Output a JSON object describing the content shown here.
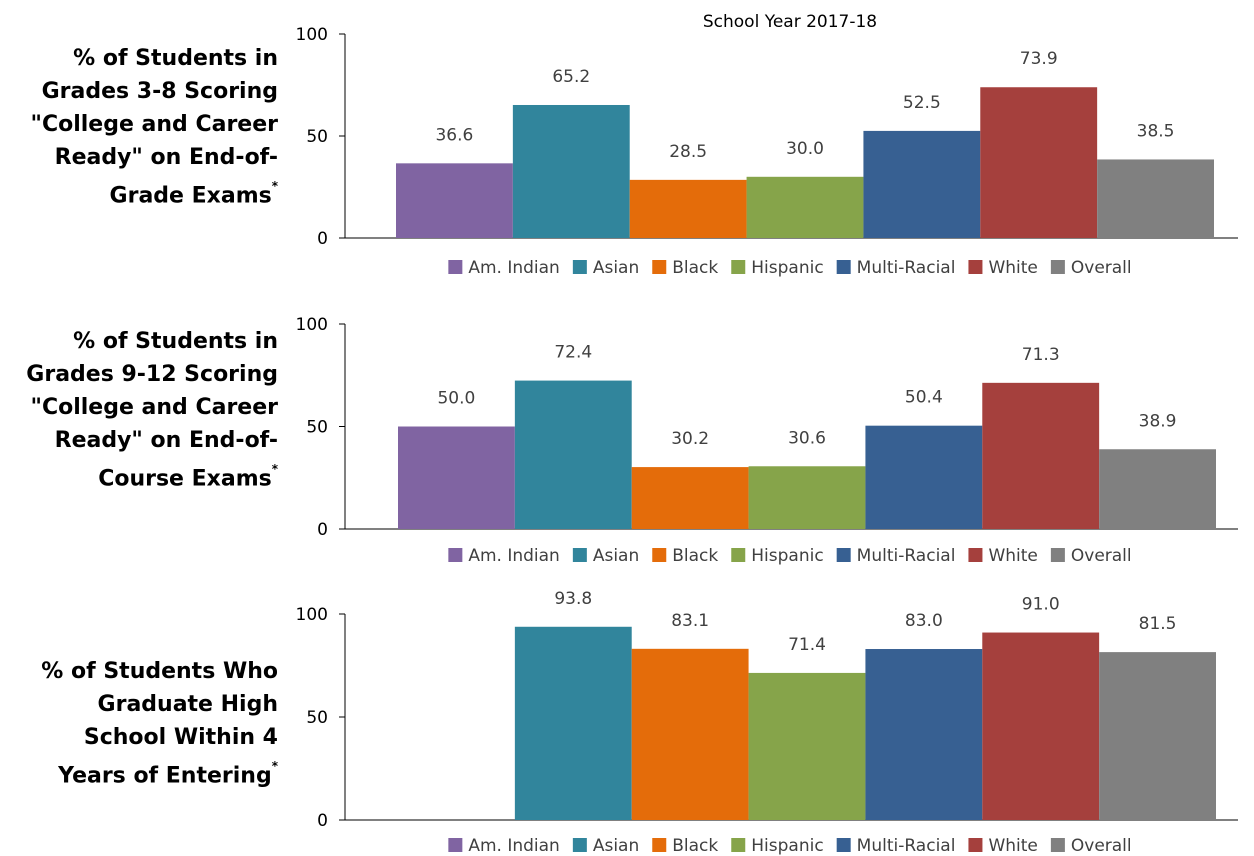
{
  "colors": {
    "Am. Indian": "#8064a2",
    "Asian": "#31859c",
    "Black": "#e46c0a",
    "Hispanic": "#86a44a",
    "Multi-Racial": "#376092",
    "White": "#a5403d",
    "Overall": "#808080"
  },
  "chart_data": [
    {
      "type": "bar",
      "title": "% of Students in Grades 3-8 Scoring \"College and Career Ready\" on End-of-Grade Exams",
      "title_marker": "*",
      "subtitle": "School Year 2017-18",
      "categories": [
        "Am. Indian",
        "Asian",
        "Black",
        "Hispanic",
        "Multi-Racial",
        "White",
        "Overall"
      ],
      "values": [
        36.6,
        65.2,
        28.5,
        30.0,
        52.5,
        73.9,
        38.5
      ],
      "value_labels": [
        "36.6",
        "65.2",
        "28.5",
        "30.0",
        "52.5",
        "73.9",
        "38.5"
      ],
      "ylim": [
        0,
        100
      ],
      "yticks": [
        "0",
        "50",
        "100"
      ],
      "legend": [
        "Am. Indian",
        "Asian",
        "Black",
        "Hispanic",
        "Multi-Racial",
        "White",
        "Overall"
      ],
      "legend_position": "bottom",
      "grid": false
    },
    {
      "type": "bar",
      "title": "% of Students in Grades 9-12 Scoring \"College and Career Ready\" on End-of-Course Exams",
      "title_marker": "*",
      "categories": [
        "Am. Indian",
        "Asian",
        "Black",
        "Hispanic",
        "Multi-Racial",
        "White",
        "Overall"
      ],
      "values": [
        50.0,
        72.4,
        30.2,
        30.6,
        50.4,
        71.3,
        38.9
      ],
      "value_labels": [
        "50.0",
        "72.4",
        "30.2",
        "30.6",
        "50.4",
        "71.3",
        "38.9"
      ],
      "ylim": [
        0,
        100
      ],
      "yticks": [
        "0",
        "50",
        "100"
      ],
      "legend": [
        "Am. Indian",
        "Asian",
        "Black",
        "Hispanic",
        "Multi-Racial",
        "White",
        "Overall"
      ],
      "legend_position": "bottom",
      "grid": false
    },
    {
      "type": "bar",
      "title": "% of Students Who Graduate High School Within 4 Years of Entering",
      "title_marker": "*",
      "categories": [
        "Am. Indian",
        "Asian",
        "Black",
        "Hispanic",
        "Multi-Racial",
        "White",
        "Overall"
      ],
      "values": [
        null,
        93.8,
        83.1,
        71.4,
        83.0,
        91.0,
        81.5
      ],
      "value_labels": [
        "",
        "93.8",
        "83.1",
        "71.4",
        "83.0",
        "91.0",
        "81.5"
      ],
      "ylim": [
        0,
        100
      ],
      "yticks": [
        "0",
        "50",
        "100"
      ],
      "legend": [
        "Am. Indian",
        "Asian",
        "Black",
        "Hispanic",
        "Multi-Racial",
        "White",
        "Overall"
      ],
      "legend_position": "bottom",
      "grid": false
    }
  ],
  "labels": {
    "panel1": [
      "% of Students in",
      "Grades 3-8 Scoring",
      "\"College and Career",
      "Ready\" on End-of-",
      "Grade Exams"
    ],
    "panel2": [
      "% of Students in",
      "Grades 9-12 Scoring",
      "\"College and Career",
      "Ready\" on End-of-",
      "Course Exams"
    ],
    "panel3": [
      "% of Students Who",
      "Graduate High",
      "School Within 4",
      "Years of Entering"
    ],
    "marker": "*"
  }
}
